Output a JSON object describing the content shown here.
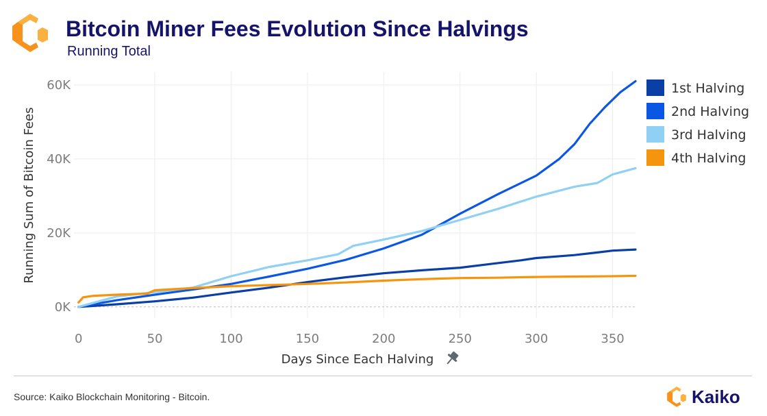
{
  "header": {
    "title": "Bitcoin Miner Fees Evolution Since Halvings",
    "subtitle": "Running Total"
  },
  "footer": {
    "source": "Source: Kaiko Blockchain Monitoring - Bitcoin.",
    "brand": "Kaiko"
  },
  "colors": {
    "title": "#16136b",
    "brand_orange": "#f7931a",
    "brand_orange_light": "#fbb040"
  },
  "icons": {
    "header_logo": "kaiko-logo-icon",
    "footer_logo": "kaiko-logo-icon",
    "x_axis_pin": "pin-icon"
  },
  "chart_data": {
    "type": "line",
    "title": "Bitcoin Miner Fees Evolution Since Halvings",
    "subtitle": "Running Total",
    "xlabel": "Days Since Each Halving",
    "ylabel": "Running Sum of Bitcoin Fees",
    "xlim": [
      -3,
      365
    ],
    "ylim": [
      -3000,
      63500
    ],
    "x_ticks": [
      0,
      50,
      100,
      150,
      200,
      250,
      300,
      350
    ],
    "x_tick_labels": [
      "0",
      "50",
      "100",
      "150",
      "200",
      "250",
      "300",
      "350"
    ],
    "y_ticks": [
      0,
      20000,
      40000,
      60000
    ],
    "y_tick_labels": [
      "0K",
      "20K",
      "40K",
      "60K"
    ],
    "grid": true,
    "legend_position": "right",
    "series": [
      {
        "name": "1st Halving",
        "color": "#0a3fa6",
        "points": [
          [
            0,
            0
          ],
          [
            25,
            700
          ],
          [
            50,
            1500
          ],
          [
            75,
            2500
          ],
          [
            100,
            3900
          ],
          [
            125,
            5200
          ],
          [
            150,
            6700
          ],
          [
            175,
            8000
          ],
          [
            200,
            9100
          ],
          [
            225,
            9900
          ],
          [
            250,
            10600
          ],
          [
            270,
            11600
          ],
          [
            290,
            12600
          ],
          [
            300,
            13200
          ],
          [
            325,
            14000
          ],
          [
            340,
            14700
          ],
          [
            350,
            15200
          ],
          [
            365,
            15500
          ]
        ]
      },
      {
        "name": "2nd Halving",
        "color": "#0b57e3",
        "points": [
          [
            0,
            0
          ],
          [
            25,
            1800
          ],
          [
            50,
            3300
          ],
          [
            75,
            4700
          ],
          [
            100,
            6200
          ],
          [
            125,
            8200
          ],
          [
            150,
            10300
          ],
          [
            175,
            12700
          ],
          [
            200,
            15800
          ],
          [
            225,
            19500
          ],
          [
            250,
            25200
          ],
          [
            275,
            30500
          ],
          [
            300,
            35500
          ],
          [
            315,
            40000
          ],
          [
            325,
            44000
          ],
          [
            335,
            49500
          ],
          [
            345,
            54000
          ],
          [
            355,
            58000
          ],
          [
            365,
            61000
          ]
        ]
      },
      {
        "name": "3rd Halving",
        "color": "#8fd0f4",
        "points": [
          [
            0,
            0
          ],
          [
            25,
            2800
          ],
          [
            50,
            4000
          ],
          [
            75,
            5200
          ],
          [
            100,
            8300
          ],
          [
            125,
            10800
          ],
          [
            150,
            12600
          ],
          [
            170,
            14200
          ],
          [
            180,
            16500
          ],
          [
            200,
            18200
          ],
          [
            225,
            20500
          ],
          [
            250,
            23500
          ],
          [
            275,
            26500
          ],
          [
            300,
            29800
          ],
          [
            325,
            32500
          ],
          [
            340,
            33500
          ],
          [
            350,
            35800
          ],
          [
            365,
            37500
          ]
        ]
      },
      {
        "name": "4th Halving",
        "color": "#f5950e",
        "points": [
          [
            0,
            1200
          ],
          [
            3,
            2600
          ],
          [
            10,
            3000
          ],
          [
            25,
            3300
          ],
          [
            45,
            3600
          ],
          [
            50,
            4500
          ],
          [
            75,
            5100
          ],
          [
            100,
            5600
          ],
          [
            125,
            5900
          ],
          [
            150,
            6200
          ],
          [
            175,
            6600
          ],
          [
            200,
            7100
          ],
          [
            225,
            7500
          ],
          [
            250,
            7800
          ],
          [
            275,
            7900
          ],
          [
            300,
            8100
          ],
          [
            325,
            8200
          ],
          [
            350,
            8300
          ],
          [
            365,
            8400
          ]
        ]
      }
    ]
  }
}
